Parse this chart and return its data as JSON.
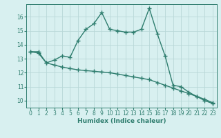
{
  "line1_x": [
    0,
    1,
    2,
    3,
    4,
    5,
    6,
    7,
    8,
    9,
    10,
    11,
    12,
    13,
    14,
    15,
    16,
    17,
    18,
    19,
    20,
    21,
    22,
    23
  ],
  "line1_y": [
    13.5,
    13.5,
    12.7,
    12.9,
    13.2,
    13.1,
    14.3,
    15.1,
    15.5,
    16.3,
    15.1,
    15.0,
    14.9,
    14.9,
    15.1,
    16.6,
    14.8,
    13.2,
    11.1,
    11.0,
    10.6,
    10.3,
    10.0,
    9.8
  ],
  "line2_x": [
    0,
    1,
    2,
    3,
    4,
    5,
    6,
    7,
    8,
    9,
    10,
    11,
    12,
    13,
    14,
    15,
    16,
    17,
    18,
    19,
    20,
    21,
    22,
    23
  ],
  "line2_y": [
    13.5,
    13.4,
    12.7,
    12.55,
    12.4,
    12.3,
    12.2,
    12.15,
    12.1,
    12.05,
    12.0,
    11.9,
    11.8,
    11.7,
    11.6,
    11.5,
    11.3,
    11.1,
    10.9,
    10.7,
    10.5,
    10.3,
    10.1,
    9.85
  ],
  "color": "#2e7d6e",
  "bgcolor": "#d8f0f0",
  "grid_color": "#b8d8d8",
  "xlabel": "Humidex (Indice chaleur)",
  "xlim": [
    -0.5,
    23.5
  ],
  "ylim": [
    9.5,
    16.9
  ],
  "yticks": [
    10,
    11,
    12,
    13,
    14,
    15,
    16
  ],
  "xticks": [
    0,
    1,
    2,
    3,
    4,
    5,
    6,
    7,
    8,
    9,
    10,
    11,
    12,
    13,
    14,
    15,
    16,
    17,
    18,
    19,
    20,
    21,
    22,
    23
  ],
  "marker": "+",
  "markersize": 4,
  "linewidth": 1.0,
  "tick_fontsize": 5.5,
  "xlabel_fontsize": 6.5
}
